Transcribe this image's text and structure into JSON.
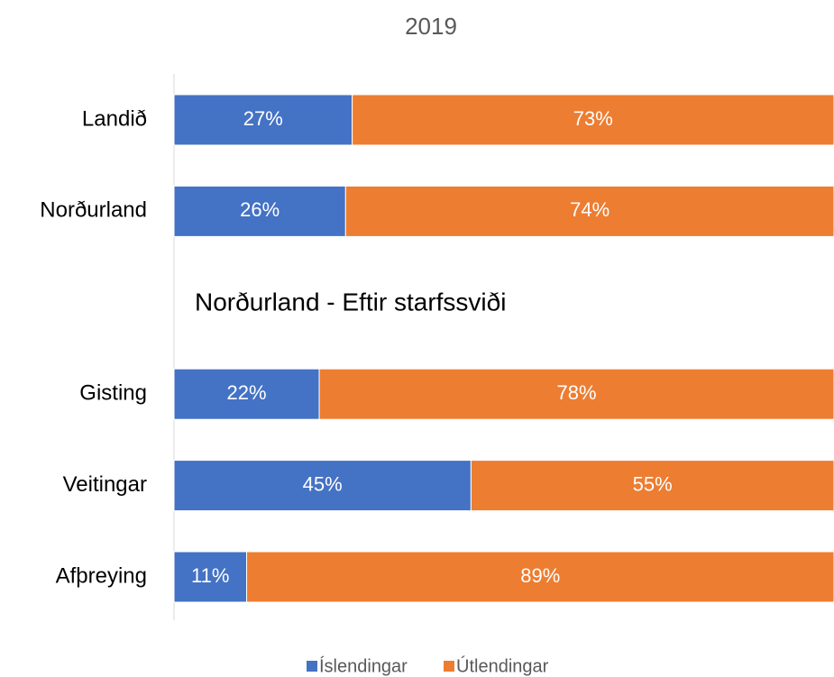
{
  "chart_data": {
    "type": "bar_stacked_horizontal",
    "title": "2019",
    "annotation": "Norðurland - Eftir starfssviði",
    "categories": [
      "Landið",
      "Norðurland",
      null,
      "Gisting",
      "Veitingar",
      "Afþreying"
    ],
    "series": [
      {
        "name": "Íslendingar",
        "color": "#4472c4",
        "values": [
          27,
          26,
          null,
          22,
          45,
          11
        ],
        "value_labels": [
          "27%",
          "26%",
          null,
          "22%",
          "45%",
          "11%"
        ]
      },
      {
        "name": "Útlendingar",
        "color": "#ed7d31",
        "values": [
          73,
          74,
          null,
          78,
          55,
          89
        ],
        "value_labels": [
          "73%",
          "74%",
          null,
          "78%",
          "55%",
          "89%"
        ]
      }
    ],
    "xlim": [
      0,
      100
    ],
    "legend": "bottom"
  }
}
